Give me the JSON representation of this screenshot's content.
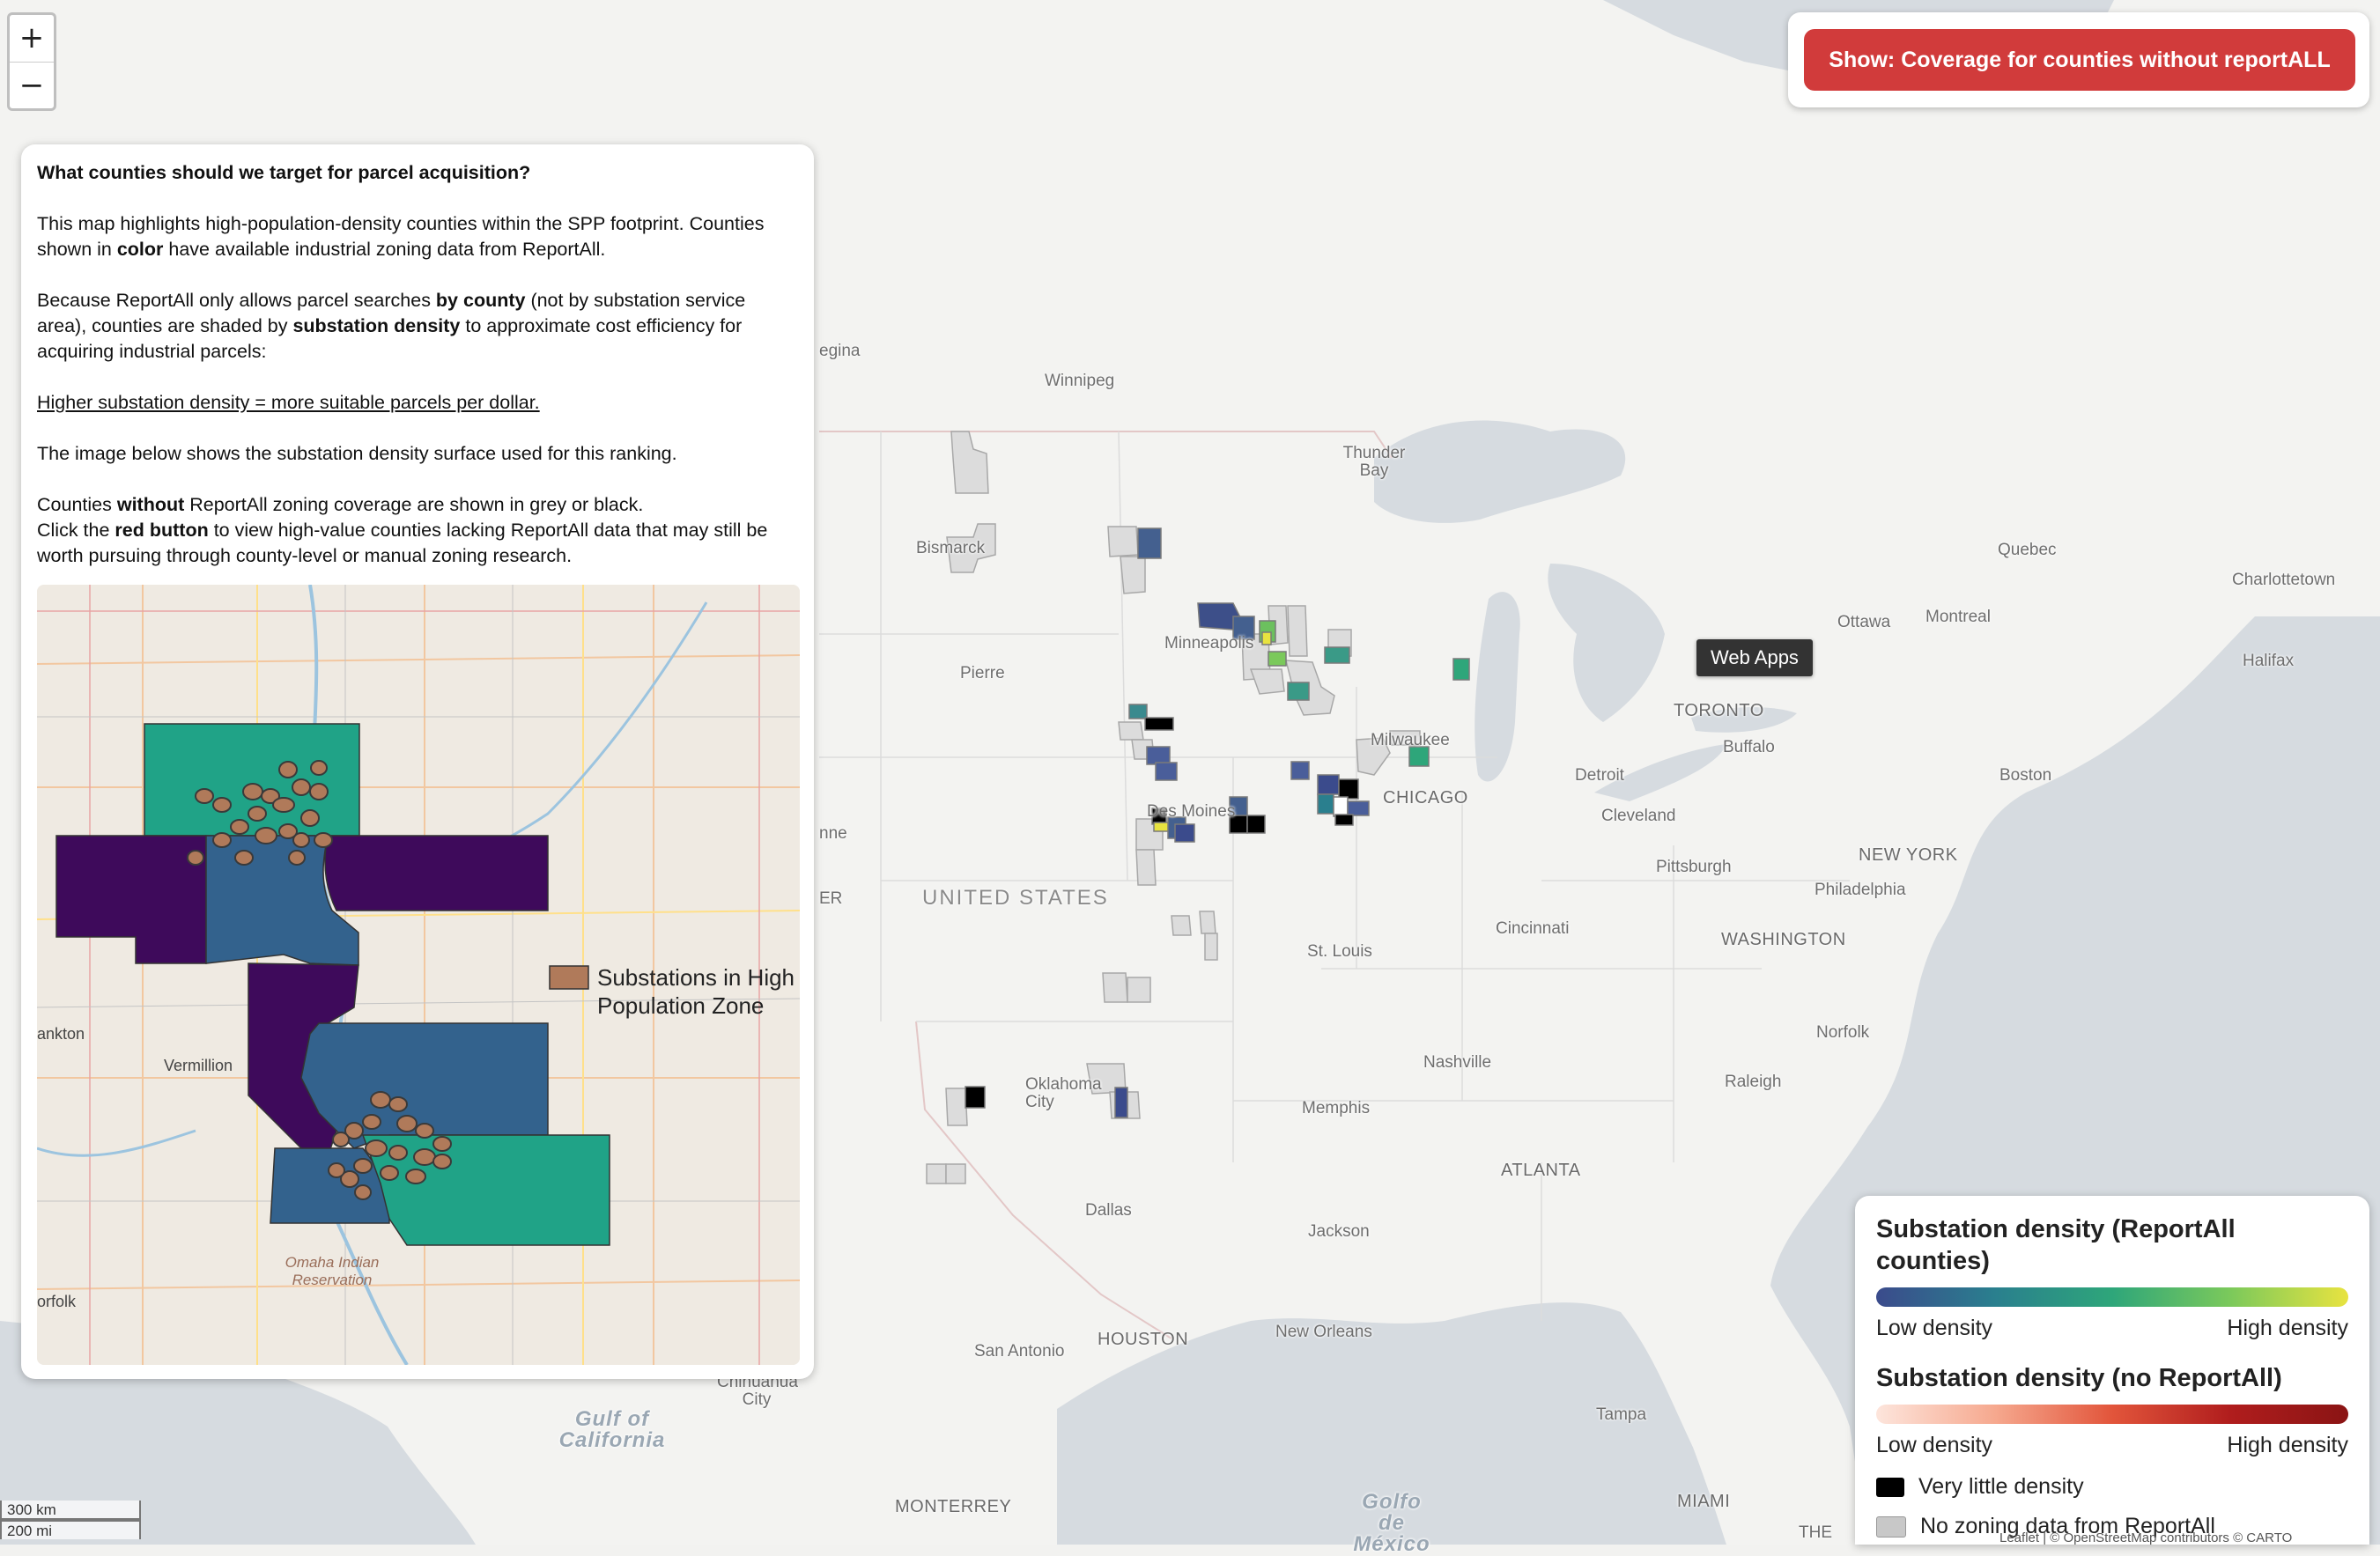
{
  "map": {
    "zoom_in": "+",
    "zoom_out": "−",
    "labels": {
      "winnipeg": "Winnipeg",
      "thunder_bay": "Thunder Bay",
      "bismarck": "Bismarck",
      "pierre": "Pierre",
      "minneapolis": "Minneapolis",
      "milwaukee": "Milwaukee",
      "chicago": "CHICAGO",
      "des_moines": "Des Moines",
      "united_states": "UNITED STATES",
      "st_louis": "St. Louis",
      "oklahoma_city": "Oklahoma City",
      "dallas": "Dallas",
      "houston": "HOUSTON",
      "san_antonio": "San Antonio",
      "new_orleans": "New Orleans",
      "jackson": "Jackson",
      "memphis": "Memphis",
      "nashville": "Nashville",
      "atlanta": "ATLANTA",
      "cincinnati": "Cincinnati",
      "detroit": "Detroit",
      "cleveland": "Cleveland",
      "pittsburgh": "Pittsburgh",
      "toronto": "TORONTO",
      "buffalo": "Buffalo",
      "ottawa": "Ottawa",
      "montreal": "Montreal",
      "quebec": "Quebec",
      "charlottetown": "Charlottetown",
      "halifax": "Halifax",
      "boston": "Boston",
      "new_york": "NEW YORK",
      "philadelphia": "Philadelphia",
      "washington": "WASHINGTON",
      "norfolk": "Norfolk",
      "raleigh": "Raleigh",
      "tampa": "Tampa",
      "miami": "MIAMI",
      "monterrey": "MONTERREY",
      "regina": "egina",
      "cheyenne": "nne",
      "denver": "ER",
      "gulf_california": "Gulf of California",
      "golfo_mexico": "Golfo de México",
      "chihuahua": "Chihuahua City",
      "the": "THE"
    },
    "tooltip": "Web Apps",
    "toggle_button": "Show: Coverage for counties without reportALL",
    "scale": {
      "km": "300 km",
      "mi": "200 mi"
    },
    "attribution": "Leaflet | © OpenStreetMap contributors © CARTO"
  },
  "info": {
    "question": "What counties should we target for parcel acquisition?",
    "p1_a": "This map highlights high-population-density counties within the SPP footprint. Counties shown in ",
    "p1_b": "color",
    "p1_c": " have available industrial zoning data from ReportAll.",
    "p2_a": "Because ReportAll only allows parcel searches ",
    "p2_b": "by county",
    "p2_c": " (not by substation service area), counties are shaded by ",
    "p2_d": "substation density",
    "p2_e": " to approximate cost efficiency for acquiring industrial parcels:",
    "p3": "Higher substation density = more suitable parcels per dollar.",
    "p4": "The image below shows the substation density surface used for this ranking.",
    "p5_a": "Counties ",
    "p5_b": "without",
    "p5_c": " ReportAll zoning coverage are shown in grey or black.",
    "p5_d": "Click the ",
    "p5_e": "red button",
    "p5_f": " to view high-value counties lacking ReportAll data that may still be worth pursuing through county-level or manual zoning research.",
    "inset": {
      "legend_label_1": "Substations in High",
      "legend_label_2": "Population Zone",
      "place_vermillion": "Vermillion",
      "place_yankton": "ankton",
      "place_norfolk": "orfolk",
      "place_omaha": "Omaha Indian Reservation"
    }
  },
  "legend": {
    "title1": "Substation density (ReportAll counties)",
    "low1": "Low density",
    "high1": "High density",
    "title2": "Substation density (no ReportAll)",
    "low2": "Low density",
    "high2": "High density",
    "black_label": "Very little density",
    "grey_label": "No zoning data from ReportAll",
    "colors": {
      "viridis": [
        "#3b4b8c",
        "#2a7f8e",
        "#2ea67a",
        "#7bc95b",
        "#e8e340"
      ],
      "reds": [
        "#fde5dc",
        "#f6a98f",
        "#e2553b",
        "#b01d1d",
        "#8a1414"
      ],
      "black": "#000000",
      "grey": "#c8c8c8",
      "button": "#d13b3b"
    }
  }
}
